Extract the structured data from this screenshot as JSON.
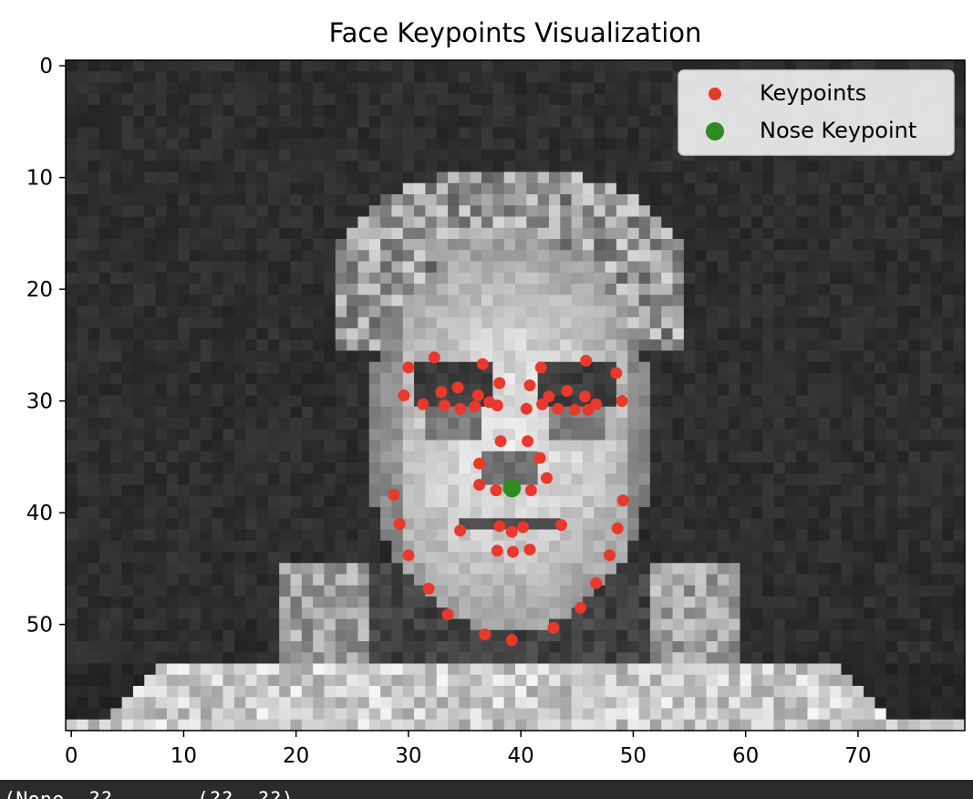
{
  "chart_data": {
    "type": "scatter",
    "title": "Face Keypoints Visualization",
    "xlabel": "",
    "ylabel": "",
    "background": "grayscale face image (80 x 60 pixels)",
    "xlim": [
      -0.5,
      79.5
    ],
    "ylim": [
      59.5,
      -0.5
    ],
    "y_inverted": true,
    "xticks": [
      0,
      10,
      20,
      30,
      40,
      50,
      60,
      70
    ],
    "yticks": [
      0,
      10,
      20,
      30,
      40,
      50
    ],
    "grid": false,
    "legend_position": "upper right",
    "series": [
      {
        "name": "Keypoints",
        "color": "#e8392c",
        "marker": "circle",
        "points": [
          [
            28.7,
            38.4
          ],
          [
            29.2,
            41.0
          ],
          [
            30.0,
            43.8
          ],
          [
            31.8,
            46.8
          ],
          [
            33.5,
            49.1
          ],
          [
            36.8,
            50.9
          ],
          [
            39.2,
            51.4
          ],
          [
            42.9,
            50.3
          ],
          [
            45.3,
            48.5
          ],
          [
            46.7,
            46.3
          ],
          [
            47.9,
            43.8
          ],
          [
            48.6,
            41.4
          ],
          [
            49.1,
            38.9
          ],
          [
            30.0,
            27.0
          ],
          [
            32.3,
            26.1
          ],
          [
            36.6,
            26.7
          ],
          [
            41.8,
            27.0
          ],
          [
            45.8,
            26.4
          ],
          [
            48.5,
            27.5
          ],
          [
            38.1,
            28.4
          ],
          [
            40.8,
            28.6
          ],
          [
            29.6,
            29.5
          ],
          [
            31.3,
            30.3
          ],
          [
            32.9,
            29.2
          ],
          [
            33.2,
            30.4
          ],
          [
            34.4,
            28.8
          ],
          [
            34.6,
            30.7
          ],
          [
            35.9,
            30.5
          ],
          [
            36.2,
            29.5
          ],
          [
            37.2,
            30.1
          ],
          [
            37.9,
            30.4
          ],
          [
            40.5,
            30.7
          ],
          [
            41.9,
            30.3
          ],
          [
            42.5,
            29.6
          ],
          [
            43.3,
            30.7
          ],
          [
            44.1,
            29.1
          ],
          [
            44.8,
            30.8
          ],
          [
            45.7,
            29.6
          ],
          [
            46.0,
            30.8
          ],
          [
            46.7,
            30.3
          ],
          [
            49.0,
            30.0
          ],
          [
            38.2,
            33.6
          ],
          [
            40.6,
            33.6
          ],
          [
            36.3,
            35.6
          ],
          [
            41.7,
            35.1
          ],
          [
            42.3,
            36.9
          ],
          [
            36.3,
            37.5
          ],
          [
            37.8,
            38.0
          ],
          [
            40.9,
            38.0
          ],
          [
            34.6,
            41.6
          ],
          [
            38.1,
            41.2
          ],
          [
            39.2,
            41.7
          ],
          [
            40.2,
            41.3
          ],
          [
            43.6,
            41.1
          ],
          [
            37.9,
            43.4
          ],
          [
            39.3,
            43.5
          ],
          [
            40.8,
            43.3
          ]
        ]
      },
      {
        "name": "Nose Keypoint",
        "color": "#2e8b22",
        "marker": "circle",
        "points": [
          [
            39.2,
            37.8
          ]
        ]
      }
    ]
  },
  "status_line": "(None  ??  ...  (??, ??)"
}
